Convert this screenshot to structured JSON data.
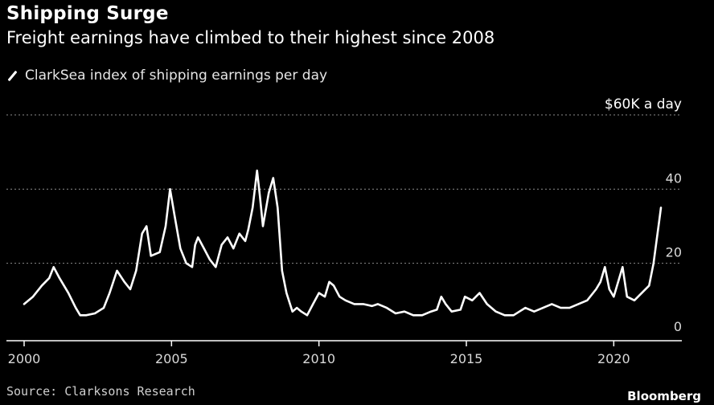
{
  "header": {
    "title": "Shipping Surge",
    "subtitle": "Freight earnings have climbed to their highest since 2008",
    "legend_label": "ClarkSea index of shipping earnings per day"
  },
  "footer": {
    "source": "Source: Clarksons Research",
    "brand": "Bloomberg"
  },
  "colors": {
    "background": "#000000",
    "line": "#ffffff",
    "grid": "#8a8a8a",
    "axis": "#ffffff",
    "tick_text": "#d9d9d9"
  },
  "chart_data": {
    "type": "line",
    "title": "Shipping Surge",
    "subtitle": "Freight earnings have climbed to their highest since 2008",
    "xlabel": "",
    "ylabel": "",
    "xlim": [
      2000,
      2021.9
    ],
    "ylim": [
      0,
      60
    ],
    "grid": "horizontal dotted",
    "x_ticks": [
      {
        "value": 2000,
        "label": "2000"
      },
      {
        "value": 2005,
        "label": "2005"
      },
      {
        "value": 2010,
        "label": "2010"
      },
      {
        "value": 2015,
        "label": "2015"
      },
      {
        "value": 2020,
        "label": "2020"
      }
    ],
    "y_ticks": [
      {
        "value": 0,
        "label": "0"
      },
      {
        "value": 20,
        "label": "20"
      },
      {
        "value": 40,
        "label": "40"
      },
      {
        "value": 60,
        "label": "$60K a day"
      }
    ],
    "series": [
      {
        "name": "ClarkSea index of shipping earnings per day",
        "unit": "$K per day",
        "points": [
          [
            2000.0,
            9
          ],
          [
            2000.3,
            11
          ],
          [
            2000.6,
            14
          ],
          [
            2000.85,
            16
          ],
          [
            2001.0,
            19
          ],
          [
            2001.2,
            16
          ],
          [
            2001.5,
            12
          ],
          [
            2001.75,
            8
          ],
          [
            2001.9,
            6
          ],
          [
            2002.1,
            6
          ],
          [
            2002.4,
            6.5
          ],
          [
            2002.7,
            8
          ],
          [
            2002.9,
            12
          ],
          [
            2003.15,
            18
          ],
          [
            2003.4,
            15
          ],
          [
            2003.6,
            13
          ],
          [
            2003.8,
            18
          ],
          [
            2004.0,
            28
          ],
          [
            2004.15,
            30
          ],
          [
            2004.3,
            22
          ],
          [
            2004.6,
            23
          ],
          [
            2004.8,
            30
          ],
          [
            2004.95,
            40
          ],
          [
            2005.1,
            33
          ],
          [
            2005.3,
            24
          ],
          [
            2005.5,
            20
          ],
          [
            2005.7,
            19
          ],
          [
            2005.8,
            25
          ],
          [
            2005.9,
            27
          ],
          [
            2006.1,
            24
          ],
          [
            2006.3,
            21
          ],
          [
            2006.5,
            19
          ],
          [
            2006.7,
            25
          ],
          [
            2006.9,
            27
          ],
          [
            2007.1,
            24
          ],
          [
            2007.3,
            28
          ],
          [
            2007.5,
            26
          ],
          [
            2007.6,
            29
          ],
          [
            2007.75,
            35
          ],
          [
            2007.9,
            45
          ],
          [
            2008.0,
            38
          ],
          [
            2008.1,
            30
          ],
          [
            2008.3,
            39
          ],
          [
            2008.45,
            43
          ],
          [
            2008.6,
            35
          ],
          [
            2008.75,
            18
          ],
          [
            2008.9,
            12
          ],
          [
            2009.1,
            7
          ],
          [
            2009.25,
            8
          ],
          [
            2009.4,
            7
          ],
          [
            2009.6,
            6
          ],
          [
            2009.8,
            9
          ],
          [
            2010.0,
            12
          ],
          [
            2010.2,
            11
          ],
          [
            2010.35,
            15
          ],
          [
            2010.5,
            14
          ],
          [
            2010.7,
            11
          ],
          [
            2010.9,
            10
          ],
          [
            2011.2,
            9
          ],
          [
            2011.5,
            9
          ],
          [
            2011.8,
            8.5
          ],
          [
            2012.0,
            9
          ],
          [
            2012.3,
            8
          ],
          [
            2012.6,
            6.5
          ],
          [
            2012.9,
            7
          ],
          [
            2013.2,
            6
          ],
          [
            2013.5,
            6
          ],
          [
            2013.8,
            7
          ],
          [
            2014.0,
            7.5
          ],
          [
            2014.15,
            11
          ],
          [
            2014.3,
            9
          ],
          [
            2014.5,
            7
          ],
          [
            2014.8,
            7.5
          ],
          [
            2014.95,
            11
          ],
          [
            2015.2,
            10
          ],
          [
            2015.45,
            12
          ],
          [
            2015.7,
            9
          ],
          [
            2016.0,
            7
          ],
          [
            2016.3,
            6
          ],
          [
            2016.6,
            6
          ],
          [
            2016.8,
            7
          ],
          [
            2017.0,
            8
          ],
          [
            2017.3,
            7
          ],
          [
            2017.6,
            8
          ],
          [
            2017.9,
            9
          ],
          [
            2018.2,
            8
          ],
          [
            2018.5,
            8
          ],
          [
            2018.8,
            9
          ],
          [
            2019.1,
            10
          ],
          [
            2019.4,
            13
          ],
          [
            2019.55,
            15
          ],
          [
            2019.7,
            19
          ],
          [
            2019.85,
            13
          ],
          [
            2020.0,
            11
          ],
          [
            2020.15,
            15
          ],
          [
            2020.3,
            19
          ],
          [
            2020.45,
            11
          ],
          [
            2020.7,
            10
          ],
          [
            2020.95,
            12
          ],
          [
            2021.2,
            14
          ],
          [
            2021.35,
            20
          ],
          [
            2021.45,
            26
          ],
          [
            2021.55,
            32
          ],
          [
            2021.6,
            35
          ]
        ]
      }
    ]
  }
}
